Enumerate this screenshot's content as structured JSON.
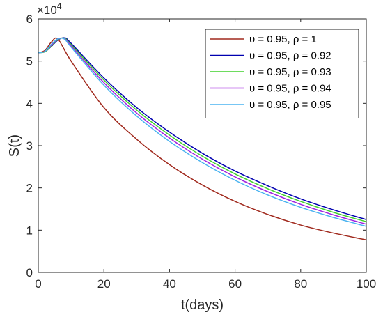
{
  "chart_data": {
    "type": "line",
    "xlabel": "t(days)",
    "ylabel": "S(t)",
    "y_multiplier_label": "×10",
    "y_multiplier_exponent": "4",
    "xlim": [
      0,
      100
    ],
    "ylim": [
      0,
      6
    ],
    "x_ticks": [
      0,
      20,
      40,
      60,
      80,
      100
    ],
    "y_ticks": [
      0,
      1,
      2,
      3,
      4,
      5,
      6
    ],
    "grid": false,
    "legend_position": "top-right",
    "series": [
      {
        "name": "υ = 0.95, ρ = 1",
        "color": "#a0291d",
        "x": [
          0,
          2,
          4,
          6,
          10,
          20,
          30,
          40,
          50,
          60,
          70,
          80,
          90,
          100
        ],
        "y": [
          5.2,
          5.25,
          5.45,
          5.52,
          5.0,
          3.9,
          3.15,
          2.55,
          2.07,
          1.68,
          1.37,
          1.12,
          0.93,
          0.77
        ]
      },
      {
        "name": "υ = 0.95, ρ = 0.92",
        "color": "#0000b0",
        "x": [
          0,
          2,
          4,
          6,
          8,
          10,
          20,
          30,
          40,
          50,
          60,
          70,
          80,
          90,
          100
        ],
        "y": [
          5.2,
          5.22,
          5.35,
          5.5,
          5.55,
          5.42,
          4.6,
          3.9,
          3.32,
          2.82,
          2.4,
          2.05,
          1.74,
          1.48,
          1.25
        ]
      },
      {
        "name": "υ = 0.95, ρ = 0.93",
        "color": "#3fd12a",
        "x": [
          0,
          2,
          4,
          6,
          8,
          10,
          20,
          30,
          40,
          50,
          60,
          70,
          80,
          90,
          100
        ],
        "y": [
          5.2,
          5.22,
          5.36,
          5.51,
          5.54,
          5.39,
          4.55,
          3.84,
          3.25,
          2.75,
          2.33,
          1.98,
          1.68,
          1.42,
          1.2
        ]
      },
      {
        "name": "υ = 0.95, ρ = 0.94",
        "color": "#a020e0",
        "x": [
          0,
          2,
          4,
          6,
          8,
          10,
          20,
          30,
          40,
          50,
          60,
          70,
          80,
          90,
          100
        ],
        "y": [
          5.2,
          5.23,
          5.38,
          5.52,
          5.53,
          5.36,
          4.49,
          3.77,
          3.18,
          2.68,
          2.26,
          1.91,
          1.61,
          1.36,
          1.14
        ]
      },
      {
        "name": "υ = 0.95, ρ = 0.95",
        "color": "#4ab3f0",
        "x": [
          0,
          2,
          4,
          6,
          8,
          10,
          20,
          30,
          40,
          50,
          60,
          70,
          80,
          90,
          100
        ],
        "y": [
          5.2,
          5.23,
          5.4,
          5.53,
          5.52,
          5.33,
          4.43,
          3.7,
          3.1,
          2.6,
          2.18,
          1.83,
          1.54,
          1.3,
          1.09
        ]
      }
    ]
  }
}
